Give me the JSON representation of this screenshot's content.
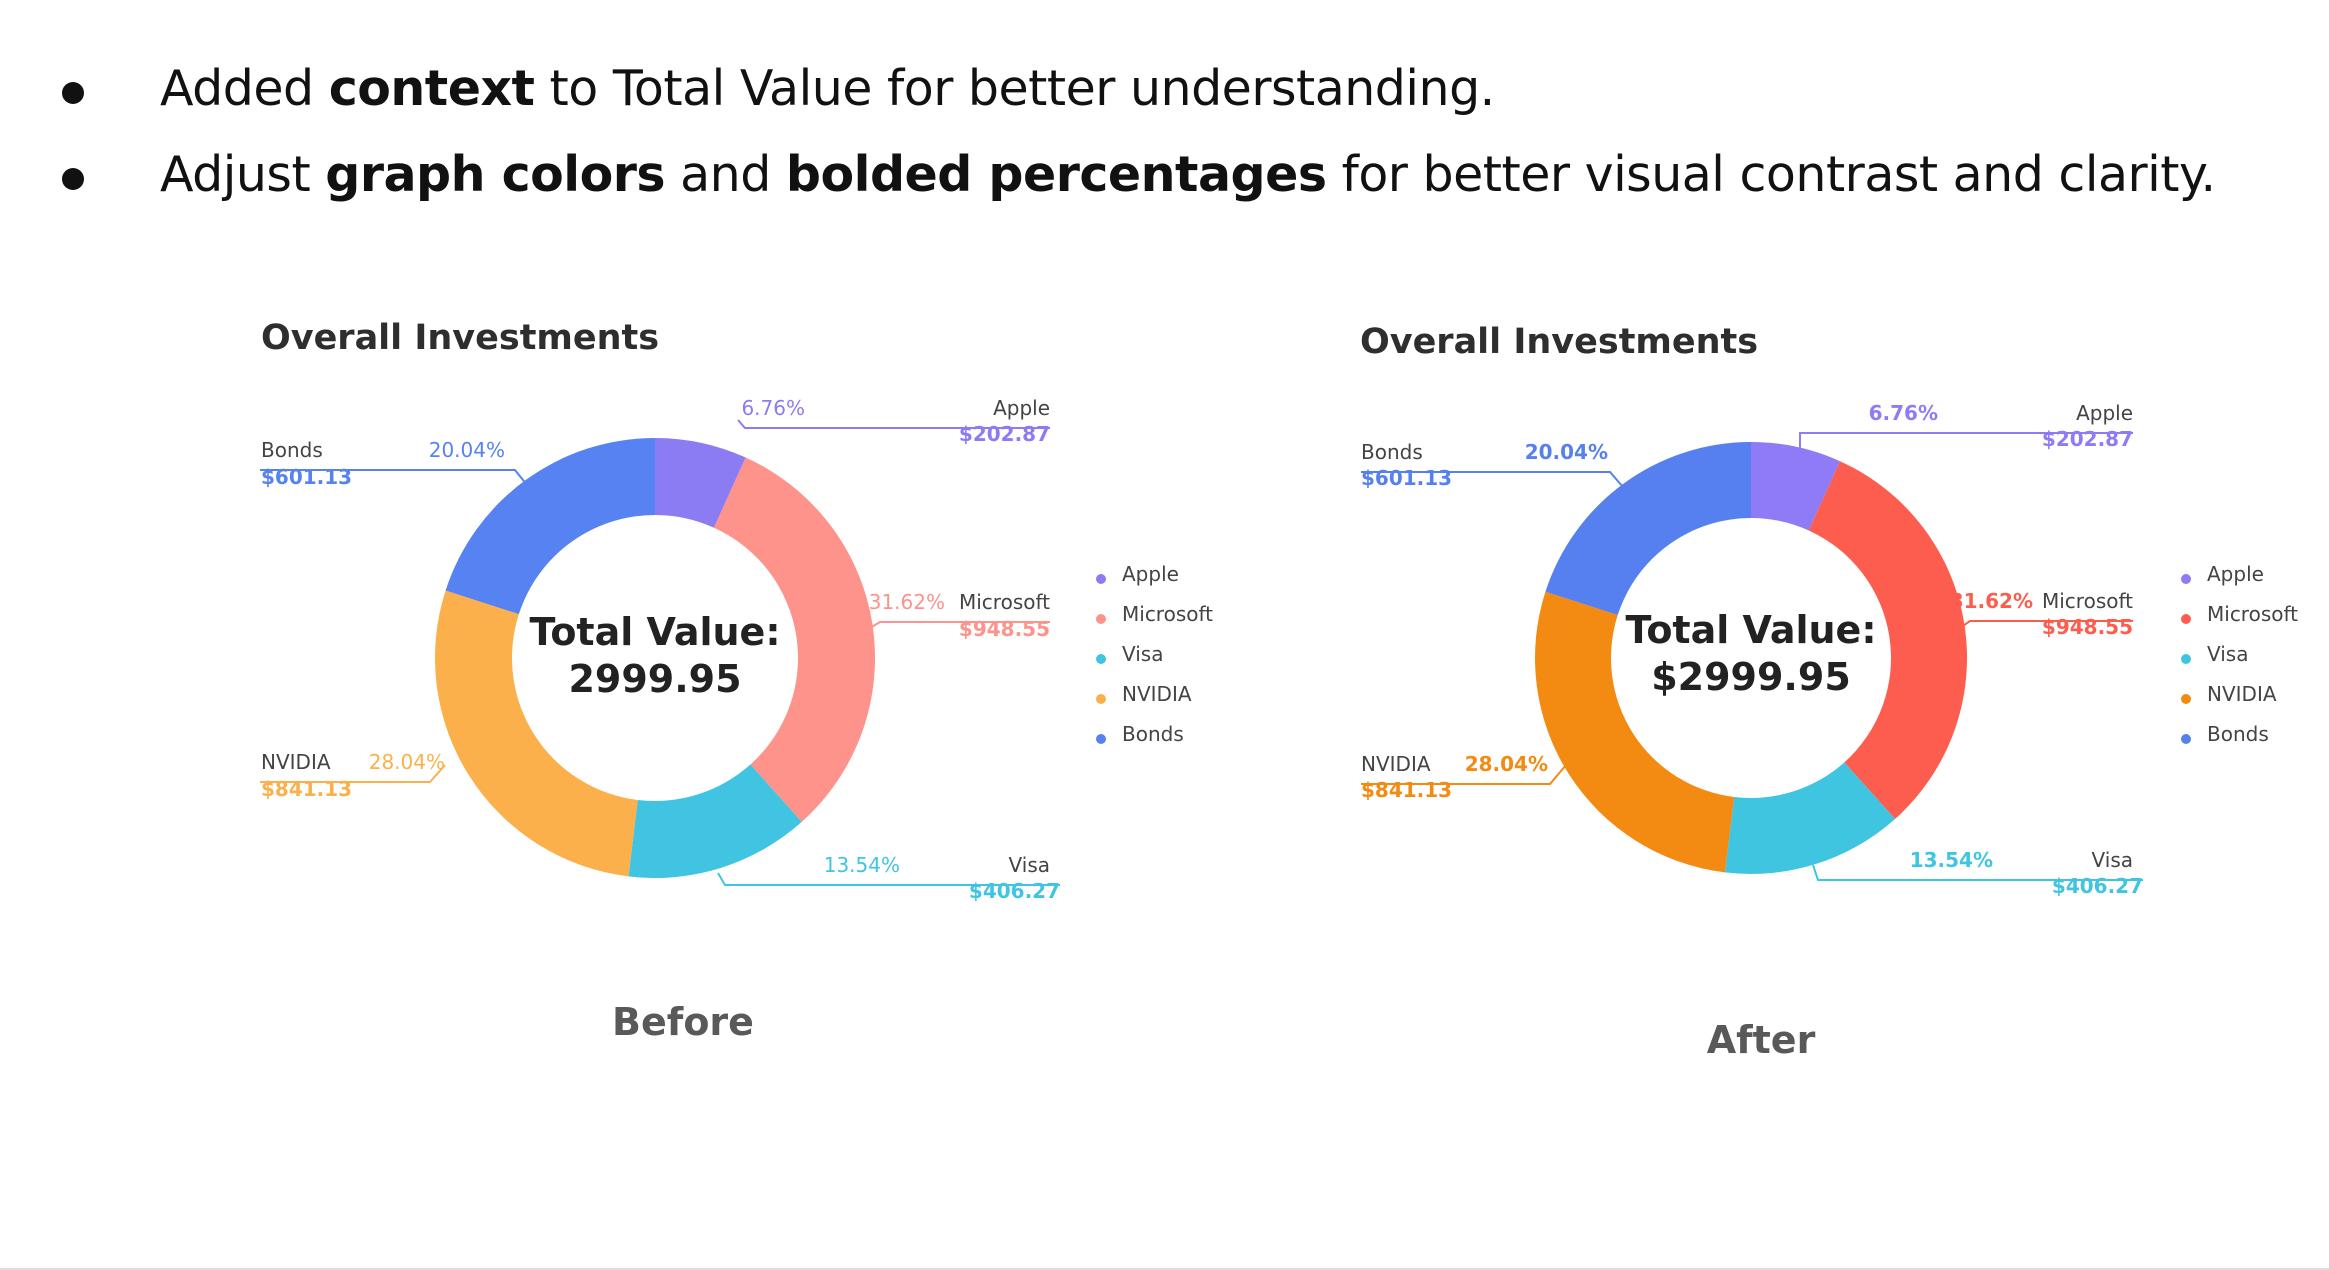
{
  "bullets": [
    {
      "parts": [
        {
          "t": "Added ",
          "b": false
        },
        {
          "t": "context",
          "b": true
        },
        {
          "t": " to Total Value for better understanding.",
          "b": false
        }
      ]
    },
    {
      "parts": [
        {
          "t": "Adjust ",
          "b": false
        },
        {
          "t": "graph colors",
          "b": true
        },
        {
          "t": " and ",
          "b": false
        },
        {
          "t": "bolded percentages",
          "b": true
        },
        {
          "t": " for better visual contrast and clarity.",
          "b": false
        }
      ]
    }
  ],
  "before": {
    "caption": "Before"
  },
  "after": {
    "caption": "After"
  },
  "chart_data": [
    {
      "type": "pie",
      "title": "Overall Investments",
      "center_label": [
        "Total Value:",
        "2999.95"
      ],
      "categories": [
        "Apple",
        "Microsoft",
        "Visa",
        "NVIDIA",
        "Bonds"
      ],
      "values": [
        202.87,
        948.55,
        406.27,
        841.13,
        601.13
      ],
      "percent_labels": [
        "6.76%",
        "31.62%",
        "13.54%",
        "28.04%",
        "20.04%"
      ],
      "value_labels": [
        "$202.87",
        "$948.55",
        "$406.27",
        "$841.13",
        "$601.13"
      ],
      "colors": [
        "#8c7cf4",
        "#fd938b",
        "#41c4e1",
        "#fbb04c",
        "#5682f2"
      ],
      "bold_percentages": false,
      "legend": "right"
    },
    {
      "type": "pie",
      "title": "Overall Investments",
      "center_label": [
        "Total Value:",
        "$2999.95"
      ],
      "categories": [
        "Apple",
        "Microsoft",
        "Visa",
        "NVIDIA",
        "Bonds"
      ],
      "values": [
        202.87,
        948.55,
        406.27,
        841.13,
        601.13
      ],
      "percent_labels": [
        "6.76%",
        "31.62%",
        "13.54%",
        "28.04%",
        "20.04%"
      ],
      "value_labels": [
        "$202.87",
        "$948.55",
        "$406.27",
        "$841.13",
        "$601.13"
      ],
      "colors": [
        "#8e7bf5",
        "#fd5d4f",
        "#40c5e0",
        "#f38a12",
        "#5680f0"
      ],
      "bold_percentages": true,
      "legend": "right"
    }
  ]
}
